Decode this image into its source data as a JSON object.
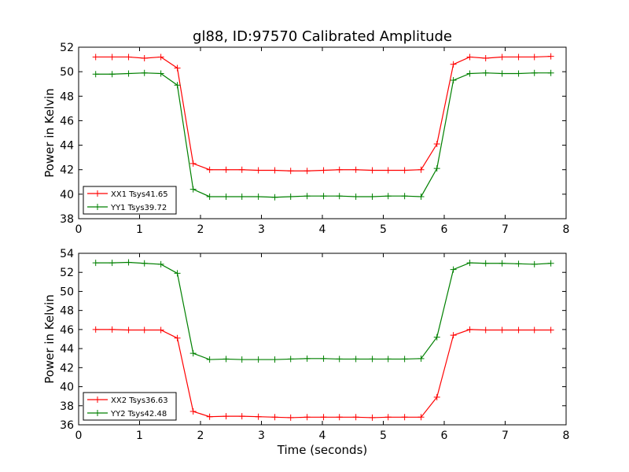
{
  "chart_data": {
    "title": "gl88, ID:97570 Calibrated Amplitude",
    "xlabel": "Time (seconds)",
    "xlim": [
      0,
      8
    ],
    "xticks": [
      "0",
      "1",
      "2",
      "3",
      "4",
      "5",
      "6",
      "7",
      "8"
    ],
    "x": [
      0.28,
      0.55,
      0.82,
      1.08,
      1.35,
      1.62,
      1.88,
      2.15,
      2.42,
      2.68,
      2.95,
      3.22,
      3.48,
      3.75,
      4.02,
      4.28,
      4.55,
      4.82,
      5.08,
      5.35,
      5.62,
      5.88,
      6.15,
      6.42,
      6.68,
      6.95,
      7.22,
      7.48,
      7.75
    ],
    "panels": [
      {
        "type": "line",
        "ylabel": "Power in Kelvin",
        "ylim": [
          38,
          52
        ],
        "yticks": [
          "38",
          "40",
          "42",
          "44",
          "46",
          "48",
          "50",
          "52"
        ],
        "legend_position": "lower-left",
        "series": [
          {
            "name": "XX1 Tsys41.65",
            "color": "#ff0000",
            "values": [
              51.2,
              51.2,
              51.2,
              51.1,
              51.2,
              50.3,
              42.5,
              42.0,
              42.0,
              42.0,
              41.95,
              41.95,
              41.9,
              41.9,
              41.95,
              42.0,
              42.0,
              41.95,
              41.95,
              41.95,
              42.0,
              44.1,
              50.6,
              51.2,
              51.1,
              51.2,
              51.2,
              51.2,
              51.25
            ]
          },
          {
            "name": "YY1 Tsys39.72",
            "color": "#008000",
            "values": [
              49.8,
              49.8,
              49.85,
              49.9,
              49.85,
              48.9,
              40.4,
              39.8,
              39.8,
              39.8,
              39.8,
              39.75,
              39.8,
              39.85,
              39.85,
              39.85,
              39.8,
              39.8,
              39.85,
              39.85,
              39.8,
              42.1,
              49.3,
              49.85,
              49.9,
              49.85,
              49.85,
              49.9,
              49.9
            ]
          }
        ]
      },
      {
        "type": "line",
        "ylabel": "Power in Kelvin",
        "ylim": [
          36,
          54
        ],
        "yticks": [
          "36",
          "38",
          "40",
          "42",
          "44",
          "46",
          "48",
          "50",
          "52",
          "54"
        ],
        "legend_position": "lower-left",
        "series": [
          {
            "name": "XX2 Tsys36.63",
            "color": "#ff0000",
            "values": [
              46.0,
              46.0,
              45.95,
              45.95,
              45.95,
              45.1,
              37.4,
              36.85,
              36.9,
              36.9,
              36.85,
              36.8,
              36.75,
              36.8,
              36.8,
              36.8,
              36.8,
              36.75,
              36.8,
              36.8,
              36.8,
              38.9,
              45.4,
              46.0,
              45.95,
              45.95,
              45.95,
              45.95,
              45.95
            ]
          },
          {
            "name": "YY2 Tsys42.48",
            "color": "#008000",
            "values": [
              53.0,
              53.0,
              53.05,
              52.95,
              52.85,
              51.9,
              43.5,
              42.85,
              42.9,
              42.85,
              42.85,
              42.85,
              42.9,
              42.95,
              42.95,
              42.9,
              42.9,
              42.9,
              42.9,
              42.9,
              42.95,
              45.2,
              52.3,
              53.0,
              52.95,
              52.95,
              52.9,
              52.85,
              52.95
            ]
          }
        ]
      }
    ]
  }
}
